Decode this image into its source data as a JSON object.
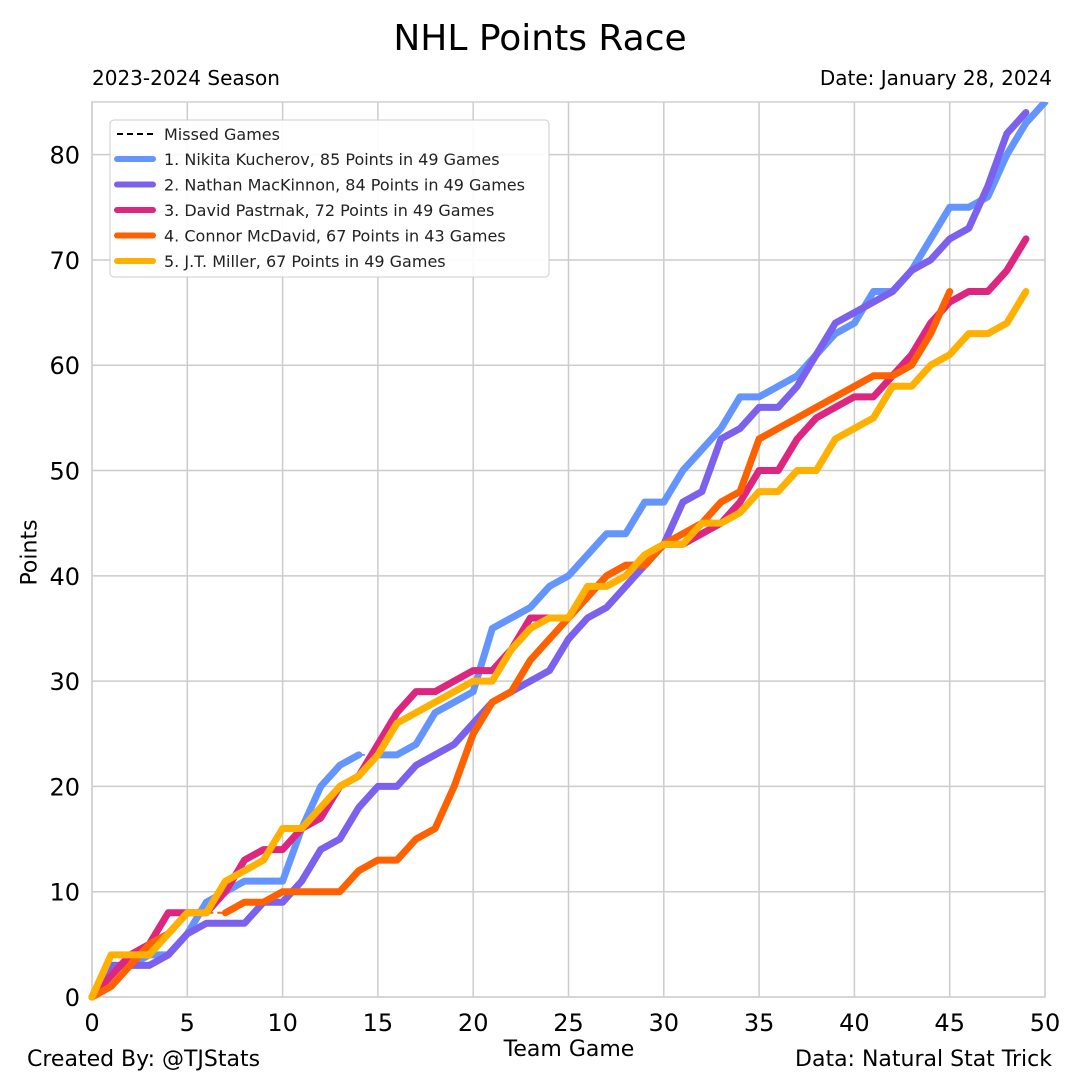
{
  "chart_data": {
    "type": "line",
    "title": "NHL Points Race",
    "subtitle": "2023-2024 Season",
    "date_label": "Date: January 28, 2024",
    "xlabel": "Team Game",
    "ylabel": "Points",
    "credit": "Created By: @TJStats",
    "source": "Data: Natural Stat Trick",
    "xlim": [
      0,
      50
    ],
    "ylim": [
      0,
      85
    ],
    "xticks": [
      0,
      5,
      10,
      15,
      20,
      25,
      30,
      35,
      40,
      45,
      50
    ],
    "yticks": [
      0,
      10,
      20,
      30,
      40,
      50,
      60,
      70,
      80
    ],
    "grid": true,
    "legend_placement": "top-left",
    "legend_missed_label": "Missed Games",
    "series": [
      {
        "name": "1. Nikita Kucherov, 85 Points in 49 Games",
        "color": "#6495FF",
        "values": [
          0,
          3,
          3,
          4,
          4,
          6,
          9,
          10,
          11,
          11,
          11,
          16,
          20,
          22,
          23,
          23,
          23,
          24,
          27,
          28,
          29,
          35,
          36,
          37,
          39,
          40,
          42,
          44,
          44,
          47,
          47,
          50,
          52,
          54,
          57,
          57,
          58,
          59,
          61,
          63,
          64,
          67,
          67,
          69,
          72,
          75,
          75,
          76,
          80,
          83,
          85
        ],
        "missed": [
          [
            14,
            15
          ]
        ]
      },
      {
        "name": "2. Nathan MacKinnon, 84 Points in 49 Games",
        "color": "#7B61EE",
        "values": [
          0,
          3,
          3,
          3,
          4,
          6,
          7,
          7,
          7,
          9,
          9,
          11,
          14,
          15,
          18,
          20,
          20,
          22,
          23,
          24,
          26,
          28,
          29,
          30,
          31,
          34,
          36,
          37,
          39,
          41,
          43,
          47,
          48,
          53,
          54,
          56,
          56,
          58,
          61,
          64,
          65,
          66,
          67,
          69,
          70,
          72,
          73,
          77,
          82,
          84
        ],
        "missed": []
      },
      {
        "name": "3. David Pastrnak, 72 Points in 49 Games",
        "color": "#DC267F",
        "values": [
          0,
          2,
          4,
          5,
          8,
          8,
          8,
          10,
          13,
          14,
          14,
          16,
          17,
          20,
          21,
          24,
          27,
          29,
          29,
          30,
          31,
          31,
          33,
          36,
          36,
          36,
          38,
          40,
          41,
          41,
          43,
          43,
          44,
          45,
          47,
          50,
          50,
          53,
          55,
          56,
          57,
          57,
          59,
          61,
          64,
          66,
          67,
          67,
          69,
          72
        ],
        "missed": []
      },
      {
        "name": "4. Connor McDavid, 67 Points in 43 Games",
        "color": "#FE6100",
        "values": [
          0,
          1,
          3,
          5,
          6,
          8,
          8,
          8,
          9,
          9,
          10,
          10,
          10,
          10,
          12,
          13,
          13,
          15,
          16,
          20,
          25,
          28,
          29,
          32,
          34,
          36,
          38,
          40,
          41,
          41,
          43,
          44,
          45,
          47,
          48,
          53,
          54,
          55,
          56,
          57,
          58,
          59,
          59,
          60,
          63,
          67
        ],
        "missed": [
          [
            5,
            7
          ]
        ]
      },
      {
        "name": "5. J.T. Miller, 67 Points in 49 Games",
        "color": "#FFB000",
        "values": [
          0,
          4,
          4,
          4,
          6,
          8,
          8,
          11,
          12,
          13,
          16,
          16,
          18,
          20,
          21,
          23,
          26,
          27,
          28,
          29,
          30,
          30,
          33,
          35,
          36,
          36,
          39,
          39,
          40,
          42,
          43,
          43,
          45,
          45,
          46,
          48,
          48,
          50,
          50,
          53,
          54,
          55,
          58,
          58,
          60,
          61,
          63,
          63,
          64,
          67
        ],
        "missed": []
      }
    ]
  }
}
